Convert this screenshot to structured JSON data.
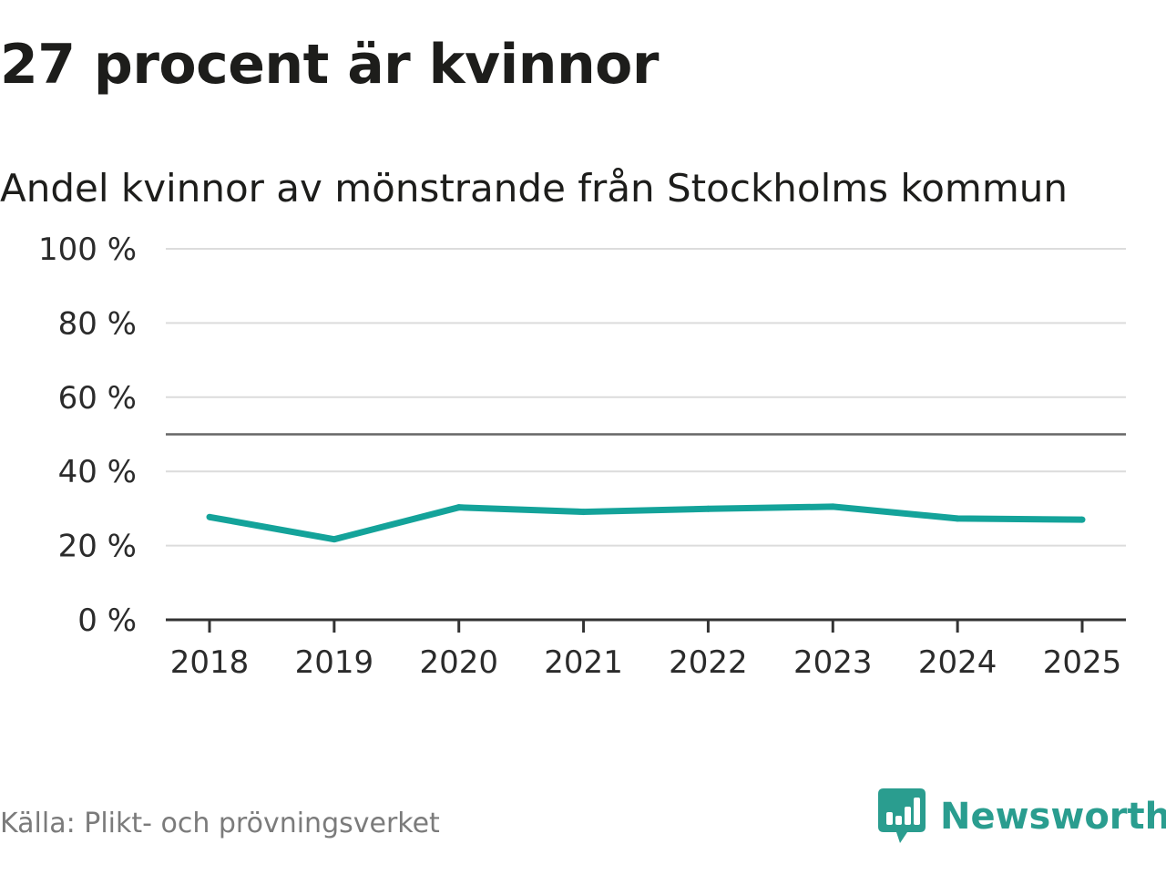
{
  "title": "27 procent är kvinnor",
  "subtitle": "Andel kvinnor av mönstrande från Stockholms kommun",
  "source": "Källa: Plikt- och prövningsverket",
  "brand": {
    "name": "Newsworthy",
    "icon": "bar-chart-speech-icon",
    "color": "#2a9d8f"
  },
  "colors": {
    "line": "#14a39a",
    "grid": "#dcdcdc",
    "reference": "#666666",
    "axis": "#333333"
  },
  "chart_data": {
    "type": "line",
    "title": "27 procent är kvinnor",
    "subtitle": "Andel kvinnor av mönstrande från Stockholms kommun",
    "xlabel": "",
    "ylabel": "",
    "categories": [
      "2018",
      "2019",
      "2020",
      "2021",
      "2022",
      "2023",
      "2024",
      "2025"
    ],
    "series": [
      {
        "name": "Andel kvinnor",
        "values": [
          27.7,
          21.7,
          30.3,
          29.1,
          29.9,
          30.5,
          27.3,
          27.0
        ]
      }
    ],
    "ylim": [
      0,
      100
    ],
    "yticks": [
      0,
      20,
      40,
      60,
      80,
      100
    ],
    "ytick_labels": [
      "0 %",
      "20 %",
      "40 %",
      "60 %",
      "80 %",
      "100 %"
    ],
    "reference_line": 50,
    "grid": true,
    "legend": "none"
  }
}
